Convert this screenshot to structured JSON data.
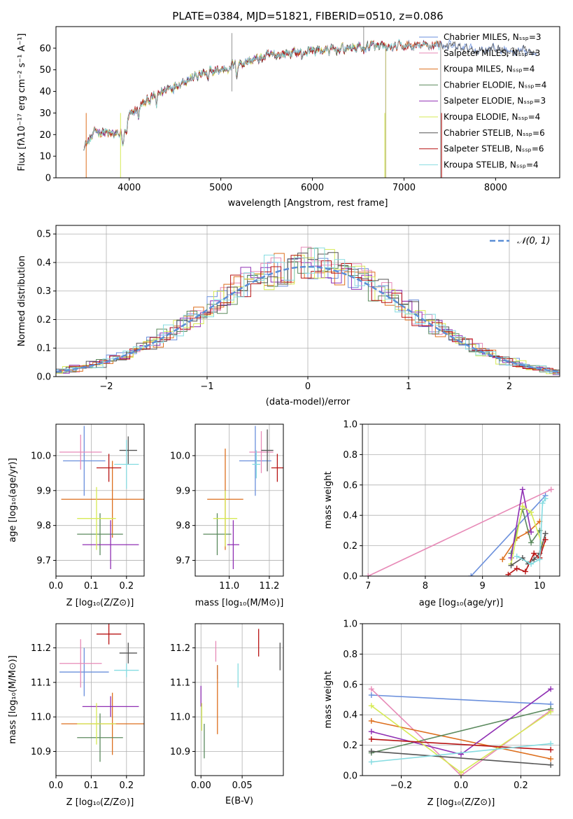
{
  "figure": {
    "title": "PLATE=0384, MJD=51821, FIBERID=0510, z=0.086"
  },
  "colors": {
    "Chabrier MILES": "#6a8fdc",
    "Salpeter MILES": "#e78ab7",
    "Kroupa MILES": "#dd6f1e",
    "Chabrier ELODIE": "#5b8a5e",
    "Salpeter ELODIE": "#8f2fb3",
    "Kroupa ELODIE": "#d6ea55",
    "Chabrier STELIB": "#555555",
    "Salpeter STELIB": "#b81414",
    "Kroupa STELIB": "#86dce1",
    "normal_curve": "#5b8ed6",
    "grid": "#b0b0b0"
  },
  "chart_data": [
    {
      "id": "spectrum",
      "type": "line",
      "title": "PLATE=0384, MJD=51821, FIBERID=0510, z=0.086",
      "xlabel": "wavelength [Angstrom, rest frame]",
      "ylabel": "Flux [fλ10⁻¹⁷ erg cm⁻² s⁻¹ A⁻¹]",
      "xlim": [
        3200,
        8700
      ],
      "ylim": [
        0,
        70
      ],
      "xticks": [
        4000,
        5000,
        6000,
        7000,
        8000
      ],
      "yticks": [
        0,
        10,
        20,
        30,
        40,
        50,
        60
      ],
      "grid": false,
      "legend_position": "top-right",
      "legend": [
        "Chabrier MILES, Nₛₛₚ=3",
        "Salpeter MILES, Nₛₛₚ=3",
        "Kroupa MILES, Nₛₛₚ=4",
        "Chabrier ELODIE, Nₛₛₚ=4",
        "Salpeter ELODIE, Nₛₛₚ=3",
        "Kroupa ELODIE, Nₛₛₚ=4",
        "Chabrier STELIB, Nₛₛₚ=6",
        "Salpeter STELIB, Nₛₛₚ=6",
        "Kroupa STELIB, Nₛₛₚ=4"
      ],
      "continuum": [
        [
          3500,
          14
        ],
        [
          3650,
          22
        ],
        [
          3800,
          20
        ],
        [
          3900,
          20
        ],
        [
          4000,
          28
        ],
        [
          4100,
          33
        ],
        [
          4250,
          37
        ],
        [
          4400,
          41
        ],
        [
          4600,
          45
        ],
        [
          4800,
          48
        ],
        [
          5000,
          50
        ],
        [
          5200,
          53
        ],
        [
          5400,
          55
        ],
        [
          5600,
          57
        ],
        [
          5800,
          58
        ],
        [
          6000,
          59
        ],
        [
          6200,
          59
        ],
        [
          6400,
          60
        ],
        [
          6600,
          61
        ],
        [
          6800,
          60
        ],
        [
          7000,
          61
        ],
        [
          7200,
          61
        ],
        [
          7400,
          62
        ],
        [
          7600,
          60
        ],
        [
          7800,
          59
        ],
        [
          8000,
          60
        ],
        [
          8200,
          58
        ],
        [
          8400,
          58
        ]
      ],
      "series_ranges": [
        {
          "name": "Chabrier MILES",
          "x": [
            3500,
            8450
          ]
        },
        {
          "name": "Salpeter MILES",
          "x": [
            3500,
            7400
          ]
        },
        {
          "name": "Kroupa MILES",
          "x": [
            3500,
            7400
          ]
        },
        {
          "name": "Chabrier ELODIE",
          "x": [
            3500,
            6800
          ]
        },
        {
          "name": "Salpeter ELODIE",
          "x": [
            3500,
            6800
          ]
        },
        {
          "name": "Kroupa ELODIE",
          "x": [
            3500,
            6800
          ]
        },
        {
          "name": "Chabrier STELIB",
          "x": [
            3500,
            8450
          ]
        },
        {
          "name": "Salpeter STELIB",
          "x": [
            3500,
            7400
          ]
        },
        {
          "name": "Kroupa STELIB",
          "x": [
            3500,
            7400
          ]
        }
      ]
    },
    {
      "id": "residuals",
      "type": "bar",
      "xlabel": "(data-model)/error",
      "ylabel": "Normed distribution",
      "xlim": [
        -2.5,
        2.5
      ],
      "ylim": [
        0,
        0.53
      ],
      "xticks": [
        -2,
        -1,
        0,
        1,
        2
      ],
      "xticklabels": [
        "−2",
        "−1",
        "0",
        "1",
        "2"
      ],
      "yticks": [
        0.0,
        0.1,
        0.2,
        0.3,
        0.4,
        0.5
      ],
      "grid": true,
      "legend_position": "top-right",
      "legend": [
        "𝒩(0, 1)"
      ],
      "bin_width": 0.1,
      "gaussian": {
        "mean": 0,
        "sigma": 1,
        "scale": 0.98
      }
    },
    {
      "id": "age-vs-z",
      "type": "scatter",
      "xlabel": "Z [log₁₀(Z/Z⊙)]",
      "ylabel": "age  [log₁₀(age/yr)]",
      "xlim": [
        0.0,
        0.25
      ],
      "ylim": [
        9.655,
        10.09
      ],
      "xticks": [
        0.0,
        0.1,
        0.2
      ],
      "yticks": [
        9.7,
        9.8,
        9.9,
        10.0
      ],
      "grid": true,
      "points": [
        {
          "name": "Chabrier MILES",
          "x": 0.08,
          "xerr": 0.06,
          "y": 9.985,
          "yerr": 0.1
        },
        {
          "name": "Salpeter MILES",
          "x": 0.07,
          "xerr": 0.06,
          "y": 10.01,
          "yerr": 0.05
        },
        {
          "name": "Kroupa MILES",
          "x": 0.16,
          "xerr": 0.145,
          "y": 9.875,
          "yerr": 0.11
        },
        {
          "name": "Chabrier ELODIE",
          "x": 0.125,
          "xerr": 0.065,
          "y": 9.775,
          "yerr": 0.06
        },
        {
          "name": "Salpeter ELODIE",
          "x": 0.155,
          "xerr": 0.08,
          "y": 9.745,
          "yerr": 0.07
        },
        {
          "name": "Kroupa ELODIE",
          "x": 0.115,
          "xerr": 0.055,
          "y": 9.82,
          "yerr": 0.09
        },
        {
          "name": "Chabrier STELIB",
          "x": 0.205,
          "xerr": 0.025,
          "y": 10.015,
          "yerr": 0.04
        },
        {
          "name": "Salpeter STELIB",
          "x": 0.15,
          "xerr": 0.035,
          "y": 9.965,
          "yerr": 0.04
        },
        {
          "name": "Kroupa STELIB",
          "x": 0.2,
          "xerr": 0.035,
          "y": 9.975,
          "yerr": 0.07
        }
      ]
    },
    {
      "id": "age-vs-mass",
      "type": "scatter",
      "xlabel": "mass [log₁₀(M/M⊙)]",
      "ylabel": "",
      "xlim": [
        10.83,
        11.27
      ],
      "ylim": [
        9.655,
        10.09
      ],
      "xticks": [
        11.0,
        11.2
      ],
      "yticks": [
        9.7,
        9.8,
        9.9,
        10.0
      ],
      "grid": true,
      "points": [
        {
          "name": "Chabrier MILES",
          "x": 11.13,
          "xerr": 0.08,
          "y": 9.985,
          "yerr": 0.1
        },
        {
          "name": "Salpeter MILES",
          "x": 11.16,
          "xerr": 0.06,
          "y": 10.01,
          "yerr": 0.06
        },
        {
          "name": "Kroupa MILES",
          "x": 10.98,
          "xerr": 0.09,
          "y": 9.875,
          "yerr": 0.145
        },
        {
          "name": "Chabrier ELODIE",
          "x": 10.94,
          "xerr": 0.07,
          "y": 9.775,
          "yerr": 0.06
        },
        {
          "name": "Salpeter ELODIE",
          "x": 11.02,
          "xerr": 0.03,
          "y": 9.745,
          "yerr": 0.07
        },
        {
          "name": "Kroupa ELODIE",
          "x": 10.98,
          "xerr": 0.06,
          "y": 9.82,
          "yerr": 0.08
        },
        {
          "name": "Chabrier STELIB",
          "x": 11.19,
          "xerr": 0.03,
          "y": 10.015,
          "yerr": 0.06
        },
        {
          "name": "Salpeter STELIB",
          "x": 11.24,
          "xerr": 0.03,
          "y": 9.965,
          "yerr": 0.04
        },
        {
          "name": "Kroupa STELIB",
          "x": 11.135,
          "xerr": 0.02,
          "y": 9.975,
          "yerr": 0.04
        }
      ]
    },
    {
      "id": "weight-vs-age",
      "type": "line",
      "xlabel": "age  [log₁₀(age/yr)]",
      "ylabel": "mass weight",
      "xlim": [
        6.9,
        10.35
      ],
      "ylim": [
        0.0,
        1.0
      ],
      "xticks": [
        7,
        8,
        9,
        10
      ],
      "yticks": [
        0.0,
        0.2,
        0.4,
        0.6,
        0.8,
        1.0
      ],
      "grid": true,
      "series": [
        {
          "name": "Chabrier MILES",
          "x": [
            8.8,
            10.1
          ],
          "y": [
            0.0,
            0.53
          ]
        },
        {
          "name": "Salpeter MILES",
          "x": [
            7.0,
            10.2
          ],
          "y": [
            0.0,
            0.57
          ]
        },
        {
          "name": "Kroupa MILES",
          "x": [
            9.35,
            9.6,
            9.8,
            10.0
          ],
          "y": [
            0.11,
            0.25,
            0.29,
            0.36
          ]
        },
        {
          "name": "Chabrier ELODIE",
          "x": [
            9.5,
            9.7,
            9.85,
            10.0
          ],
          "y": [
            0.15,
            0.44,
            0.22,
            0.3
          ]
        },
        {
          "name": "Salpeter ELODIE",
          "x": [
            9.5,
            9.7,
            9.85
          ],
          "y": [
            0.12,
            0.57,
            0.29
          ]
        },
        {
          "name": "Kroupa ELODIE",
          "x": [
            9.5,
            9.7,
            9.85,
            10.05
          ],
          "y": [
            0.08,
            0.46,
            0.42,
            0.2
          ]
        },
        {
          "name": "Chabrier STELIB",
          "x": [
            9.5,
            9.7,
            9.8,
            9.9,
            10.0,
            10.1
          ],
          "y": [
            0.07,
            0.12,
            0.08,
            0.11,
            0.15,
            0.28
          ]
        },
        {
          "name": "Salpeter STELIB",
          "x": [
            9.45,
            9.6,
            9.75,
            9.9,
            10.0,
            10.1
          ],
          "y": [
            0.01,
            0.05,
            0.03,
            0.15,
            0.12,
            0.24
          ]
        },
        {
          "name": "Kroupa STELIB",
          "x": [
            9.6,
            9.85,
            10.0,
            10.05,
            10.1
          ],
          "y": [
            0.13,
            0.08,
            0.11,
            0.48,
            0.51
          ]
        }
      ]
    },
    {
      "id": "mass-vs-z",
      "type": "scatter",
      "xlabel": "Z [log₁₀(Z/Z⊙)]",
      "ylabel": "mass [log₁₀(M/M⊙)]",
      "xlim": [
        0.0,
        0.25
      ],
      "ylim": [
        10.83,
        11.27
      ],
      "xticks": [
        0.0,
        0.1,
        0.2
      ],
      "yticks": [
        10.9,
        11.0,
        11.1,
        11.2
      ],
      "grid": true,
      "points": [
        {
          "name": "Chabrier MILES",
          "x": 0.08,
          "xerr": 0.07,
          "y": 11.13,
          "yerr": 0.07
        },
        {
          "name": "Salpeter MILES",
          "x": 0.07,
          "xerr": 0.06,
          "y": 11.155,
          "yerr": 0.07
        },
        {
          "name": "Kroupa MILES",
          "x": 0.16,
          "xerr": 0.145,
          "y": 10.98,
          "yerr": 0.09
        },
        {
          "name": "Chabrier ELODIE",
          "x": 0.125,
          "xerr": 0.065,
          "y": 10.94,
          "yerr": 0.07
        },
        {
          "name": "Salpeter ELODIE",
          "x": 0.155,
          "xerr": 0.08,
          "y": 11.03,
          "yerr": 0.03
        },
        {
          "name": "Kroupa ELODIE",
          "x": 0.115,
          "xerr": 0.055,
          "y": 10.98,
          "yerr": 0.06
        },
        {
          "name": "Chabrier STELIB",
          "x": 0.205,
          "xerr": 0.025,
          "y": 11.185,
          "yerr": 0.03
        },
        {
          "name": "Salpeter STELIB",
          "x": 0.15,
          "xerr": 0.035,
          "y": 11.24,
          "yerr": 0.03
        },
        {
          "name": "Kroupa STELIB",
          "x": 0.2,
          "xerr": 0.035,
          "y": 11.135,
          "yerr": 0.02
        }
      ]
    },
    {
      "id": "mass-vs-ebv",
      "type": "scatter",
      "xlabel": "E(B-V)",
      "ylabel": "",
      "xlim": [
        -0.007,
        0.1
      ],
      "ylim": [
        10.83,
        11.27
      ],
      "xticks": [
        0.0,
        0.05
      ],
      "xticklabels": [
        "0.00",
        "0.05"
      ],
      "yticks": [
        10.9,
        11.0,
        11.1,
        11.2
      ],
      "grid": true,
      "points": [
        {
          "name": "Chabrier MILES",
          "x": 0.02,
          "xerr": 0,
          "y": 11.13,
          "yerr": 0.02
        },
        {
          "name": "Salpeter MILES",
          "x": 0.018,
          "xerr": 0,
          "y": 11.19,
          "yerr": 0.03
        },
        {
          "name": "Kroupa MILES",
          "x": 0.02,
          "xerr": 0,
          "y": 11.05,
          "yerr": 0.1
        },
        {
          "name": "Chabrier ELODIE",
          "x": 0.004,
          "xerr": 0,
          "y": 10.93,
          "yerr": 0.05
        },
        {
          "name": "Salpeter ELODIE",
          "x": 0.0,
          "xerr": 0,
          "y": 11.06,
          "yerr": 0.03
        },
        {
          "name": "Kroupa ELODIE",
          "x": 0.001,
          "xerr": 0,
          "y": 11.0,
          "yerr": 0.04
        },
        {
          "name": "Chabrier STELIB",
          "x": 0.096,
          "xerr": 0,
          "y": 11.175,
          "yerr": 0.04
        },
        {
          "name": "Salpeter STELIB",
          "x": 0.07,
          "xerr": 0,
          "y": 11.215,
          "yerr": 0.04
        },
        {
          "name": "Kroupa STELIB",
          "x": 0.045,
          "xerr": 0,
          "y": 11.12,
          "yerr": 0.035
        }
      ]
    },
    {
      "id": "weight-vs-z",
      "type": "line",
      "xlabel": "Z [log₁₀(Z/Z⊙)]",
      "ylabel": "mass weight",
      "xlim": [
        -0.33,
        0.33
      ],
      "ylim": [
        0.0,
        1.0
      ],
      "xticks": [
        -0.2,
        0.0,
        0.2
      ],
      "xticklabels": [
        "−0.2",
        "0.0",
        "0.2"
      ],
      "yticks": [
        0.0,
        0.2,
        0.4,
        0.6,
        0.8,
        1.0
      ],
      "grid": true,
      "series": [
        {
          "name": "Chabrier MILES",
          "x": [
            -0.3,
            0.3
          ],
          "y": [
            0.53,
            0.47
          ]
        },
        {
          "name": "Salpeter MILES",
          "x": [
            -0.3,
            0.0,
            0.3
          ],
          "y": [
            0.57,
            0.0,
            0.43
          ]
        },
        {
          "name": "Kroupa MILES",
          "x": [
            -0.3,
            0.3
          ],
          "y": [
            0.36,
            0.11
          ]
        },
        {
          "name": "Chabrier ELODIE",
          "x": [
            -0.3,
            0.3
          ],
          "y": [
            0.15,
            0.44
          ]
        },
        {
          "name": "Salpeter ELODIE",
          "x": [
            -0.3,
            0.0,
            0.3
          ],
          "y": [
            0.29,
            0.14,
            0.57
          ]
        },
        {
          "name": "Kroupa ELODIE",
          "x": [
            -0.3,
            0.0,
            0.3
          ],
          "y": [
            0.46,
            0.02,
            0.42
          ]
        },
        {
          "name": "Chabrier STELIB",
          "x": [
            -0.3,
            0.3
          ],
          "y": [
            0.16,
            0.07
          ]
        },
        {
          "name": "Salpeter STELIB",
          "x": [
            -0.3,
            0.3
          ],
          "y": [
            0.24,
            0.17
          ]
        },
        {
          "name": "Kroupa STELIB",
          "x": [
            -0.3,
            0.3
          ],
          "y": [
            0.09,
            0.21
          ]
        }
      ]
    }
  ]
}
